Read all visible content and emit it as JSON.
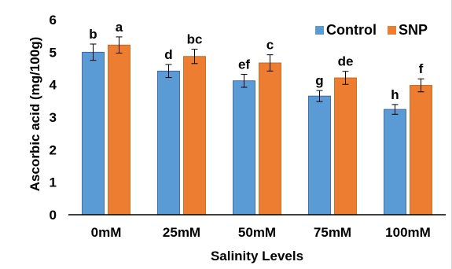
{
  "chart_data": {
    "type": "bar",
    "xlabel": "Salinity Levels",
    "ylabel": "Ascorbic acid (mg/100g)",
    "ylim": [
      0,
      6
    ],
    "yticks": [
      "0",
      "1",
      "2",
      "3",
      "4",
      "5",
      "6"
    ],
    "categories": [
      "0mM",
      "25mM",
      "50mM",
      "75mM",
      "100mM"
    ],
    "grid": false,
    "legend_position": "top-right",
    "series": [
      {
        "name": "Control",
        "color": "#5b9bd5",
        "values": [
          5.0,
          4.42,
          4.12,
          3.65,
          3.24
        ],
        "errors": [
          0.25,
          0.2,
          0.2,
          0.17,
          0.15
        ],
        "letters": [
          "b",
          "d",
          "ef",
          "g",
          "h"
        ]
      },
      {
        "name": "SNP",
        "color": "#ed7d31",
        "values": [
          5.22,
          4.87,
          4.67,
          4.21,
          3.98
        ],
        "errors": [
          0.25,
          0.22,
          0.25,
          0.2,
          0.2
        ],
        "letters": [
          "a",
          "bc",
          "c",
          "de",
          "f"
        ]
      }
    ]
  }
}
